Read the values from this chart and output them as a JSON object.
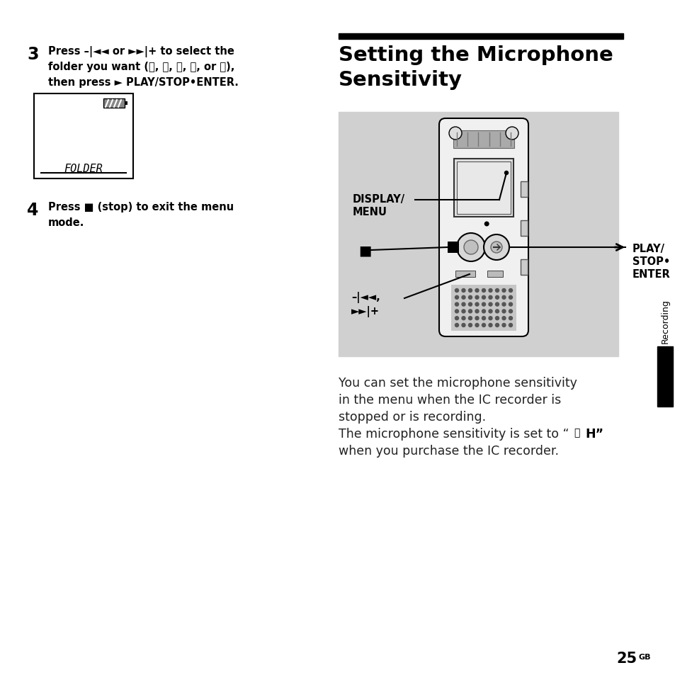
{
  "bg_color": "#ffffff",
  "black": "#000000",
  "white": "#ffffff",
  "gray_box": "#d0d0d0",
  "light_device": "#f8f8f8",
  "mid_gray": "#cccccc",
  "dark_gray": "#888888",
  "step3_num": "3",
  "step3_l1": "Press –|◄◄ or ►►|+ to select the",
  "step3_l2": "folder you want (Ⓐ, Ⓑ, Ⓒ, Ⓓ, or Ⓔ),",
  "step3_l3": "then press ► PLAY/STOP•ENTER.",
  "step4_num": "4",
  "step4_l1": "Press ■ (stop) to exit the menu",
  "step4_l2": "mode.",
  "title1": "Setting the Microphone",
  "title2": "Sensitivity",
  "lbl_display": "DISPLAY/",
  "lbl_menu": "MENU",
  "lbl_play": "PLAY/",
  "lbl_stop_enter": "STOP•",
  "lbl_enter": "ENTER",
  "lbl_skip1": "–|◄◄,",
  "lbl_skip2": "►►|+",
  "body1": "You can set the microphone sensitivity",
  "body2": "in the menu when the IC recorder is",
  "body3": "stopped or is recording.",
  "body4a": "The microphone sensitivity is set to “ ",
  "body4b": "H”",
  "body5": "when you purchase the IC recorder.",
  "sidebar_text": "Recording",
  "page_num": "25",
  "page_sfx": "GB"
}
